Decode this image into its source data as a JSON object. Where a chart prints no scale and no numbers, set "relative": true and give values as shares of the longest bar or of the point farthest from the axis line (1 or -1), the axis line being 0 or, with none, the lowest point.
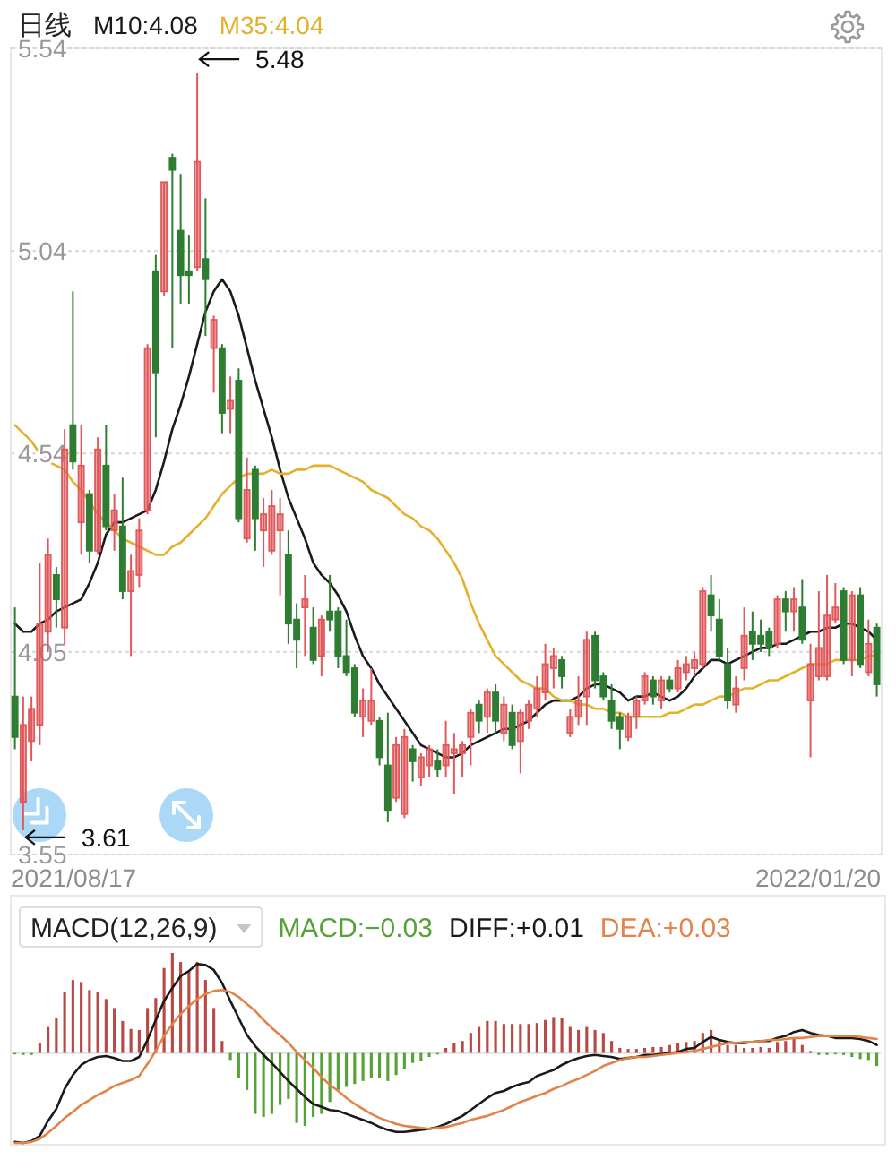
{
  "chart_data": [
    {
      "type": "candlestick",
      "title": "日线",
      "categories": [
        null,
        null,
        null,
        null,
        null,
        null,
        null,
        null,
        null,
        null,
        null,
        null,
        null,
        null,
        null,
        null,
        null,
        null,
        null,
        null,
        null,
        null,
        null,
        null,
        null,
        null,
        null,
        null,
        null,
        null,
        null,
        null,
        null,
        null,
        null,
        null,
        null,
        null,
        null,
        null,
        null,
        null,
        null,
        null,
        null,
        null,
        null,
        null,
        null,
        null,
        null,
        null,
        null,
        null,
        null,
        null,
        null,
        null,
        null,
        null,
        null,
        null,
        null,
        null,
        null,
        null,
        null,
        null,
        null,
        null,
        null,
        null,
        null,
        null,
        null,
        null,
        null,
        null,
        null,
        null,
        null,
        null,
        null,
        null,
        null,
        null,
        null,
        null,
        null,
        null,
        null,
        null,
        null,
        null,
        null,
        null,
        null,
        null,
        null,
        null,
        null,
        null,
        null,
        null,
        null
      ],
      "ohlc": [
        [
          3.94,
          4.16,
          3.81,
          3.84
        ],
        [
          3.68,
          3.94,
          3.61,
          3.87
        ],
        [
          3.83,
          3.94,
          3.78,
          3.91
        ],
        [
          3.87,
          4.27,
          3.82,
          4.12
        ],
        [
          4.1,
          4.33,
          4.05,
          4.29
        ],
        [
          4.24,
          4.26,
          4.11,
          4.18
        ],
        [
          4.11,
          4.6,
          4.07,
          4.55
        ],
        [
          4.61,
          4.94,
          4.5,
          4.52
        ],
        [
          4.37,
          4.61,
          4.29,
          4.51
        ],
        [
          4.44,
          4.45,
          4.27,
          4.3
        ],
        [
          4.3,
          4.58,
          4.29,
          4.55
        ],
        [
          4.51,
          4.61,
          4.35,
          4.36
        ],
        [
          4.35,
          4.44,
          4.3,
          4.4
        ],
        [
          4.36,
          4.48,
          4.18,
          4.2
        ],
        [
          4.2,
          4.29,
          4.04,
          4.25
        ],
        [
          4.24,
          4.38,
          4.21,
          4.35
        ],
        [
          4.4,
          4.81,
          4.39,
          4.8
        ],
        [
          4.99,
          5.03,
          4.58,
          4.74
        ],
        [
          4.94,
          5.21,
          4.93,
          5.21
        ],
        [
          5.27,
          5.28,
          4.8,
          5.24
        ],
        [
          5.09,
          5.23,
          4.91,
          4.98
        ],
        [
          4.99,
          5.08,
          4.91,
          4.98
        ],
        [
          5.0,
          5.48,
          4.99,
          5.26
        ],
        [
          5.02,
          5.17,
          4.83,
          4.97
        ],
        [
          4.8,
          4.88,
          4.69,
          4.87
        ],
        [
          4.8,
          4.81,
          4.59,
          4.64
        ],
        [
          4.65,
          4.73,
          4.59,
          4.67
        ],
        [
          4.72,
          4.75,
          4.37,
          4.38
        ],
        [
          4.33,
          4.53,
          4.32,
          4.45
        ],
        [
          4.5,
          4.51,
          4.3,
          4.38
        ],
        [
          4.35,
          4.43,
          4.26,
          4.39
        ],
        [
          4.3,
          4.45,
          4.29,
          4.41
        ],
        [
          4.35,
          4.43,
          4.19,
          4.39
        ],
        [
          4.29,
          4.35,
          4.07,
          4.12
        ],
        [
          4.13,
          4.17,
          4.01,
          4.08
        ],
        [
          4.16,
          4.24,
          4.04,
          4.18
        ],
        [
          4.11,
          4.16,
          4.02,
          4.03
        ],
        [
          4.04,
          4.14,
          3.99,
          4.13
        ],
        [
          4.15,
          4.24,
          4.1,
          4.13
        ],
        [
          4.15,
          4.16,
          4.01,
          4.04
        ],
        [
          4.04,
          4.13,
          3.99,
          4.0
        ],
        [
          4.01,
          4.02,
          3.89,
          3.9
        ],
        [
          3.89,
          3.96,
          3.84,
          3.93
        ],
        [
          3.88,
          4.01,
          3.87,
          3.93
        ],
        [
          3.88,
          3.89,
          3.77,
          3.79
        ],
        [
          3.77,
          3.9,
          3.63,
          3.66
        ],
        [
          3.69,
          3.84,
          3.68,
          3.82
        ],
        [
          3.65,
          3.86,
          3.64,
          3.84
        ],
        [
          3.81,
          3.82,
          3.73,
          3.78
        ],
        [
          3.74,
          3.8,
          3.72,
          3.79
        ],
        [
          3.77,
          3.82,
          3.74,
          3.81
        ],
        [
          3.78,
          3.81,
          3.74,
          3.76
        ],
        [
          3.77,
          3.88,
          3.74,
          3.82
        ],
        [
          3.8,
          3.85,
          3.7,
          3.81
        ],
        [
          3.8,
          3.83,
          3.74,
          3.82
        ],
        [
          3.84,
          3.91,
          3.77,
          3.9
        ],
        [
          3.92,
          3.93,
          3.85,
          3.88
        ],
        [
          3.89,
          3.96,
          3.85,
          3.95
        ],
        [
          3.95,
          3.97,
          3.85,
          3.88
        ],
        [
          3.85,
          3.94,
          3.83,
          3.92
        ],
        [
          3.9,
          3.92,
          3.81,
          3.82
        ],
        [
          3.83,
          3.91,
          3.75,
          3.9
        ],
        [
          3.88,
          3.93,
          3.86,
          3.92
        ],
        [
          3.91,
          3.99,
          3.89,
          3.96
        ],
        [
          3.95,
          4.07,
          3.93,
          4.02
        ],
        [
          4.01,
          4.06,
          3.96,
          4.04
        ],
        [
          4.03,
          4.04,
          3.96,
          3.99
        ],
        [
          3.85,
          3.91,
          3.84,
          3.89
        ],
        [
          3.89,
          3.99,
          3.87,
          3.93
        ],
        [
          3.94,
          4.1,
          3.87,
          4.08
        ],
        [
          4.09,
          4.1,
          3.96,
          3.98
        ],
        [
          3.99,
          4.0,
          3.93,
          3.94
        ],
        [
          3.93,
          3.97,
          3.86,
          3.88
        ],
        [
          3.89,
          3.9,
          3.81,
          3.86
        ],
        [
          3.84,
          3.9,
          3.83,
          3.89
        ],
        [
          3.89,
          3.94,
          3.86,
          3.93
        ],
        [
          3.93,
          4.0,
          3.92,
          3.99
        ],
        [
          3.98,
          3.99,
          3.92,
          3.94
        ],
        [
          3.93,
          3.99,
          3.91,
          3.98
        ],
        [
          3.98,
          3.99,
          3.95,
          3.96
        ],
        [
          3.96,
          4.03,
          3.95,
          4.01
        ],
        [
          4.0,
          4.04,
          3.98,
          4.02
        ],
        [
          4.01,
          4.05,
          3.99,
          4.03
        ],
        [
          4.02,
          4.21,
          4.01,
          4.2
        ],
        [
          4.19,
          4.24,
          4.1,
          4.14
        ],
        [
          4.13,
          4.18,
          4.03,
          4.04
        ],
        [
          4.02,
          4.06,
          3.91,
          3.93
        ],
        [
          3.92,
          3.99,
          3.9,
          3.96
        ],
        [
          4.01,
          4.16,
          3.98,
          4.09
        ],
        [
          4.1,
          4.15,
          4.03,
          4.07
        ],
        [
          4.09,
          4.13,
          4.05,
          4.07
        ],
        [
          4.1,
          4.11,
          4.04,
          4.06
        ],
        [
          4.07,
          4.19,
          4.06,
          4.18
        ],
        [
          4.18,
          4.2,
          4.1,
          4.15
        ],
        [
          4.15,
          4.21,
          4.1,
          4.18
        ],
        [
          4.16,
          4.23,
          4.07,
          4.08
        ],
        [
          3.93,
          4.07,
          3.79,
          4.02
        ],
        [
          3.99,
          4.2,
          3.98,
          4.06
        ],
        [
          3.99,
          4.24,
          3.98,
          4.14
        ],
        [
          4.13,
          4.22,
          4.12,
          4.16
        ],
        [
          4.2,
          4.21,
          4.02,
          4.03
        ],
        [
          4.03,
          4.2,
          3.99,
          4.19
        ],
        [
          4.19,
          4.21,
          4.01,
          4.02
        ],
        [
          4.0,
          4.13,
          3.99,
          4.07
        ],
        [
          4.11,
          4.12,
          3.94,
          3.97
        ]
      ],
      "colors": [
        "#2e7d32",
        "#e0585a",
        "#e0585a",
        "#e0585a",
        "#e0585a",
        "#2e7d32",
        "#e0585a",
        "#2e7d32",
        "#e0585a",
        "#2e7d32",
        "#e0585a",
        "#2e7d32",
        "#e0585a",
        "#2e7d32",
        "#e0585a",
        "#e0585a",
        "#e0585a",
        "#2e7d32",
        "#e0585a",
        "#2e7d32",
        "#2e7d32",
        "#2e7d32",
        "#e0585a",
        "#2e7d32",
        "#e0585a",
        "#2e7d32",
        "#e0585a",
        "#2e7d32",
        "#e0585a",
        "#2e7d32",
        "#e0585a",
        "#e0585a",
        "#e0585a",
        "#2e7d32",
        "#2e7d32",
        "#e0585a",
        "#2e7d32",
        "#e0585a",
        "#2e7d32",
        "#2e7d32",
        "#2e7d32",
        "#2e7d32",
        "#e0585a",
        "#e0585a",
        "#2e7d32",
        "#2e7d32",
        "#e0585a",
        "#e0585a",
        "#2e7d32",
        "#e0585a",
        "#e0585a",
        "#2e7d32",
        "#e0585a",
        "#e0585a",
        "#e0585a",
        "#e0585a",
        "#2e7d32",
        "#e0585a",
        "#2e7d32",
        "#e0585a",
        "#2e7d32",
        "#e0585a",
        "#e0585a",
        "#e0585a",
        "#e0585a",
        "#e0585a",
        "#2e7d32",
        "#e0585a",
        "#e0585a",
        "#e0585a",
        "#2e7d32",
        "#2e7d32",
        "#2e7d32",
        "#2e7d32",
        "#e0585a",
        "#e0585a",
        "#e0585a",
        "#2e7d32",
        "#e0585a",
        "#2e7d32",
        "#e0585a",
        "#e0585a",
        "#e0585a",
        "#e0585a",
        "#2e7d32",
        "#2e7d32",
        "#2e7d32",
        "#e0585a",
        "#e0585a",
        "#2e7d32",
        "#2e7d32",
        "#2e7d32",
        "#e0585a",
        "#2e7d32",
        "#e0585a",
        "#2e7d32",
        "#e0585a",
        "#e0585a",
        "#e0585a",
        "#e0585a",
        "#2e7d32",
        "#e0585a",
        "#2e7d32",
        "#e0585a",
        "#2e7d32"
      ],
      "series": [
        {
          "name": "M10:4.08",
          "type": "line",
          "color": "#1a1a1a",
          "values": [
            4.12,
            4.1,
            4.1,
            4.12,
            4.13,
            4.15,
            4.16,
            4.17,
            4.18,
            4.22,
            4.27,
            4.34,
            4.37,
            4.37,
            4.38,
            4.39,
            4.4,
            4.45,
            4.52,
            4.6,
            4.66,
            4.73,
            4.81,
            4.89,
            4.94,
            4.97,
            4.94,
            4.88,
            4.8,
            4.72,
            4.65,
            4.58,
            4.5,
            4.43,
            4.38,
            4.33,
            4.27,
            4.24,
            4.22,
            4.19,
            4.15,
            4.09,
            4.04,
            4.01,
            3.97,
            3.94,
            3.91,
            3.88,
            3.85,
            3.82,
            3.81,
            3.8,
            3.79,
            3.79,
            3.8,
            3.82,
            3.83,
            3.84,
            3.85,
            3.86,
            3.86,
            3.87,
            3.88,
            3.9,
            3.92,
            3.93,
            3.93,
            3.93,
            3.94,
            3.96,
            3.97,
            3.97,
            3.96,
            3.95,
            3.93,
            3.94,
            3.94,
            3.95,
            3.94,
            3.93,
            3.94,
            3.96,
            3.99,
            4.01,
            4.03,
            4.03,
            4.02,
            4.03,
            4.04,
            4.05,
            4.06,
            4.06,
            4.07,
            4.07,
            4.08,
            4.09,
            4.1,
            4.1,
            4.11,
            4.11,
            4.12,
            4.12,
            4.11,
            4.1,
            4.08
          ]
        },
        {
          "name": "M35:4.04",
          "type": "line",
          "color": "#e3b12c",
          "values": [
            4.61,
            4.59,
            4.57,
            4.54,
            4.52,
            4.51,
            4.5,
            4.47,
            4.45,
            4.42,
            4.39,
            4.37,
            4.35,
            4.33,
            4.32,
            4.31,
            4.3,
            4.29,
            4.29,
            4.31,
            4.32,
            4.34,
            4.36,
            4.38,
            4.41,
            4.44,
            4.46,
            4.48,
            4.49,
            4.49,
            4.49,
            4.5,
            4.49,
            4.49,
            4.5,
            4.5,
            4.51,
            4.51,
            4.51,
            4.5,
            4.49,
            4.48,
            4.47,
            4.45,
            4.44,
            4.43,
            4.41,
            4.39,
            4.38,
            4.36,
            4.35,
            4.33,
            4.3,
            4.27,
            4.23,
            4.17,
            4.12,
            4.08,
            4.04,
            4.02,
            4.0,
            3.98,
            3.97,
            3.96,
            3.96,
            3.94,
            3.93,
            3.93,
            3.92,
            3.92,
            3.91,
            3.91,
            3.9,
            3.9,
            3.89,
            3.89,
            3.89,
            3.89,
            3.89,
            3.9,
            3.9,
            3.91,
            3.92,
            3.92,
            3.93,
            3.94,
            3.94,
            3.95,
            3.96,
            3.96,
            3.97,
            3.98,
            3.98,
            3.99,
            4.0,
            4.01,
            4.02,
            4.02,
            4.02,
            4.03,
            4.03,
            4.03,
            4.03,
            4.04,
            4.04
          ]
        }
      ],
      "ylim": [
        3.55,
        5.54
      ],
      "yticks": [
        3.55,
        4.05,
        4.54,
        5.04,
        5.54
      ],
      "grid": "y",
      "legend": "top left",
      "annotations": [
        "5.48",
        "3.61",
        "2021/08/17",
        "2022/01/20"
      ]
    },
    {
      "type": "bar",
      "title": "MACD(12,26,9)",
      "relative": true,
      "categories": [
        null,
        null,
        null,
        null,
        null,
        null,
        null,
        null,
        null,
        null,
        null,
        null,
        null,
        null,
        null,
        null,
        null,
        null,
        null,
        null,
        null,
        null,
        null,
        null,
        null,
        null,
        null,
        null,
        null,
        null,
        null,
        null,
        null,
        null,
        null,
        null,
        null,
        null,
        null,
        null,
        null,
        null,
        null,
        null,
        null,
        null,
        null,
        null,
        null,
        null,
        null,
        null,
        null,
        null,
        null,
        null,
        null,
        null,
        null,
        null,
        null,
        null,
        null,
        null,
        null,
        null,
        null,
        null,
        null,
        null,
        null,
        null,
        null,
        null,
        null,
        null,
        null,
        null,
        null,
        null,
        null,
        null,
        null,
        null,
        null,
        null,
        null,
        null,
        null,
        null,
        null,
        null,
        null,
        null,
        null,
        null,
        null,
        null,
        null,
        null,
        null,
        null,
        null,
        null,
        null
      ],
      "series": [
        {
          "name": "MACD:−0.03",
          "colors": [
            "#56a236",
            "#56a236",
            "#56a236",
            "#b84a45",
            "#b84a45",
            "#b84a45",
            "#b84a45",
            "#b84a45",
            "#b84a45",
            "#b84a45",
            "#b84a45",
            "#b84a45",
            "#b84a45",
            "#b84a45",
            "#b84a45",
            "#b84a45",
            "#b84a45",
            "#b84a45",
            "#b84a45",
            "#b84a45",
            "#b84a45",
            "#b84a45",
            "#b84a45",
            "#b84a45",
            "#b84a45",
            "#b84a45",
            "#56a236",
            "#56a236",
            "#56a236",
            "#56a236",
            "#56a236",
            "#56a236",
            "#56a236",
            "#56a236",
            "#56a236",
            "#56a236",
            "#56a236",
            "#56a236",
            "#56a236",
            "#56a236",
            "#56a236",
            "#56a236",
            "#56a236",
            "#56a236",
            "#56a236",
            "#56a236",
            "#56a236",
            "#56a236",
            "#56a236",
            "#56a236",
            "#56a236",
            "#56a236",
            "#b84a45",
            "#b84a45",
            "#b84a45",
            "#b84a45",
            "#b84a45",
            "#b84a45",
            "#b84a45",
            "#b84a45",
            "#b84a45",
            "#b84a45",
            "#b84a45",
            "#b84a45",
            "#b84a45",
            "#b84a45",
            "#b84a45",
            "#b84a45",
            "#b84a45",
            "#b84a45",
            "#b84a45",
            "#b84a45",
            "#b84a45",
            "#b84a45",
            "#b84a45",
            "#b84a45",
            "#b84a45",
            "#b84a45",
            "#b84a45",
            "#b84a45",
            "#b84a45",
            "#b84a45",
            "#b84a45",
            "#b84a45",
            "#b84a45",
            "#b84a45",
            "#b84a45",
            "#b84a45",
            "#b84a45",
            "#b84a45",
            "#b84a45",
            "#b84a45",
            "#b84a45",
            "#b84a45",
            "#b84a45",
            "#b84a45",
            "#b84a45",
            "#56a236",
            "#56a236",
            "#56a236",
            "#56a236",
            "#56a236",
            "#56a236",
            "#56a236",
            "#56a236"
          ],
          "values": [
            -0.01,
            -0.02,
            -0.02,
            0.1,
            0.26,
            0.35,
            0.61,
            0.73,
            0.71,
            0.63,
            0.61,
            0.54,
            0.45,
            0.32,
            0.24,
            0.23,
            0.45,
            0.55,
            0.85,
            1.0,
            0.91,
            0.82,
            0.91,
            0.73,
            0.45,
            0.12,
            -0.07,
            -0.25,
            -0.37,
            -0.61,
            -0.64,
            -0.61,
            -0.52,
            -0.46,
            -0.7,
            -0.73,
            -0.64,
            -0.61,
            -0.49,
            -0.37,
            -0.34,
            -0.31,
            -0.28,
            -0.25,
            -0.25,
            -0.28,
            -0.22,
            -0.16,
            -0.1,
            -0.08,
            -0.04,
            -0.01,
            0.05,
            0.1,
            0.12,
            0.2,
            0.26,
            0.32,
            0.32,
            0.29,
            0.29,
            0.29,
            0.29,
            0.3,
            0.33,
            0.36,
            0.35,
            0.26,
            0.23,
            0.26,
            0.23,
            0.2,
            0.12,
            0.05,
            0.04,
            0.04,
            0.05,
            0.06,
            0.06,
            0.08,
            0.1,
            0.11,
            0.12,
            0.2,
            0.23,
            0.12,
            0.08,
            0.08,
            0.05,
            0.05,
            0.06,
            0.05,
            0.11,
            0.12,
            0.14,
            0.08,
            0.02,
            -0.02,
            -0.02,
            -0.01,
            -0.02,
            -0.04,
            -0.06,
            -0.07,
            -0.13
          ]
        },
        {
          "name": "DIFF:+0.01",
          "type": "line",
          "color": "#1a1a1a",
          "values": [
            -0.89,
            -0.9,
            -0.88,
            -0.83,
            -0.68,
            -0.56,
            -0.36,
            -0.22,
            -0.12,
            -0.07,
            -0.04,
            -0.03,
            -0.05,
            -0.08,
            -0.08,
            -0.04,
            0.13,
            0.33,
            0.52,
            0.65,
            0.77,
            0.82,
            0.89,
            0.88,
            0.83,
            0.7,
            0.52,
            0.35,
            0.18,
            0.07,
            -0.02,
            -0.1,
            -0.19,
            -0.28,
            -0.36,
            -0.44,
            -0.51,
            -0.54,
            -0.57,
            -0.58,
            -0.61,
            -0.64,
            -0.67,
            -0.7,
            -0.74,
            -0.77,
            -0.79,
            -0.79,
            -0.78,
            -0.77,
            -0.76,
            -0.74,
            -0.71,
            -0.67,
            -0.63,
            -0.57,
            -0.51,
            -0.45,
            -0.4,
            -0.38,
            -0.34,
            -0.31,
            -0.29,
            -0.23,
            -0.2,
            -0.17,
            -0.12,
            -0.08,
            -0.05,
            -0.03,
            -0.02,
            -0.03,
            -0.04,
            -0.06,
            -0.05,
            -0.04,
            -0.02,
            -0.02,
            -0.01,
            0.0,
            0.01,
            0.04,
            0.05,
            0.11,
            0.16,
            0.13,
            0.11,
            0.1,
            0.1,
            0.11,
            0.12,
            0.12,
            0.15,
            0.17,
            0.21,
            0.23,
            0.2,
            0.18,
            0.17,
            0.15,
            0.15,
            0.15,
            0.14,
            0.12,
            0.08
          ]
        },
        {
          "name": "DEA:+0.03",
          "type": "line",
          "color": "#e2844a",
          "values": [
            -0.9,
            -0.9,
            -0.89,
            -0.86,
            -0.8,
            -0.73,
            -0.65,
            -0.59,
            -0.52,
            -0.47,
            -0.42,
            -0.38,
            -0.33,
            -0.3,
            -0.27,
            -0.23,
            -0.11,
            0.02,
            0.17,
            0.29,
            0.39,
            0.47,
            0.54,
            0.59,
            0.62,
            0.63,
            0.61,
            0.56,
            0.49,
            0.42,
            0.33,
            0.25,
            0.18,
            0.1,
            0.01,
            -0.07,
            -0.15,
            -0.24,
            -0.32,
            -0.38,
            -0.45,
            -0.51,
            -0.56,
            -0.61,
            -0.65,
            -0.68,
            -0.71,
            -0.73,
            -0.74,
            -0.75,
            -0.76,
            -0.75,
            -0.74,
            -0.72,
            -0.7,
            -0.67,
            -0.65,
            -0.63,
            -0.6,
            -0.57,
            -0.53,
            -0.49,
            -0.46,
            -0.43,
            -0.4,
            -0.36,
            -0.33,
            -0.29,
            -0.26,
            -0.22,
            -0.18,
            -0.13,
            -0.1,
            -0.07,
            -0.05,
            -0.04,
            -0.04,
            -0.03,
            -0.02,
            -0.01,
            0.0,
            0.01,
            0.02,
            0.04,
            0.06,
            0.08,
            0.1,
            0.1,
            0.11,
            0.11,
            0.12,
            0.13,
            0.13,
            0.14,
            0.15,
            0.15,
            0.16,
            0.17,
            0.17,
            0.17,
            0.17,
            0.17,
            0.16,
            0.15,
            0.14
          ]
        }
      ],
      "legend": "top right"
    }
  ]
}
